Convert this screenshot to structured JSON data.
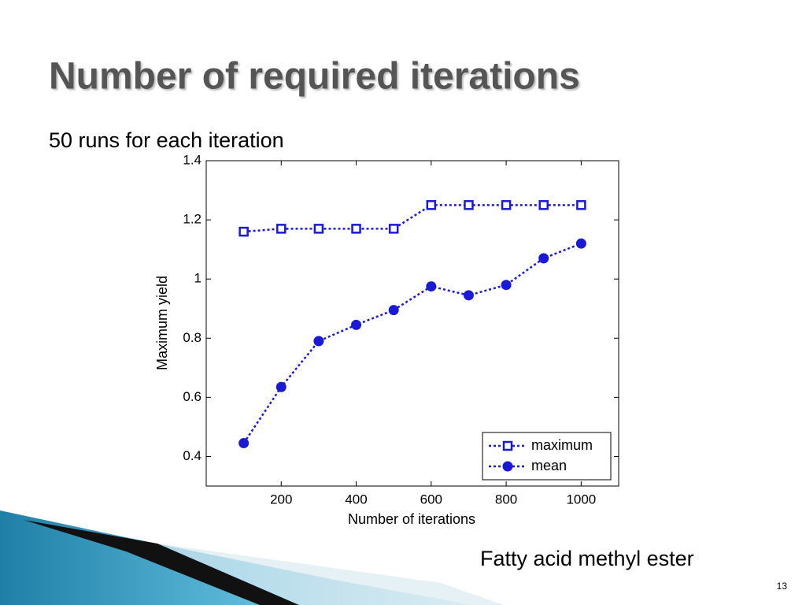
{
  "slide": {
    "title": "Number of required iterations",
    "subtitle": "50 runs for each iteration",
    "caption": "Fatty acid methyl ester",
    "page_number": "13"
  },
  "chart_data": {
    "type": "line",
    "xlabel": "Number of iterations",
    "ylabel": "Maximum yield",
    "x": [
      100,
      200,
      300,
      400,
      500,
      600,
      700,
      800,
      900,
      1000
    ],
    "series": [
      {
        "name": "maximum",
        "color": "#1a1ad6",
        "marker": "square",
        "values": [
          1.16,
          1.17,
          1.17,
          1.17,
          1.17,
          1.25,
          1.25,
          1.25,
          1.25,
          1.25
        ]
      },
      {
        "name": "mean",
        "color": "#1a1ad6",
        "marker": "circle",
        "values": [
          0.445,
          0.635,
          0.79,
          0.845,
          0.895,
          0.975,
          0.945,
          0.98,
          1.07,
          1.12
        ]
      }
    ],
    "xlim": [
      0,
      1100
    ],
    "xticks": [
      200,
      400,
      600,
      800,
      1000
    ],
    "ylim": [
      0.3,
      1.4
    ],
    "yticks": [
      0.4,
      0.6,
      0.8,
      1,
      1.2,
      1.4
    ],
    "line_style": "dotted",
    "legend": "lower right",
    "grid": false
  }
}
